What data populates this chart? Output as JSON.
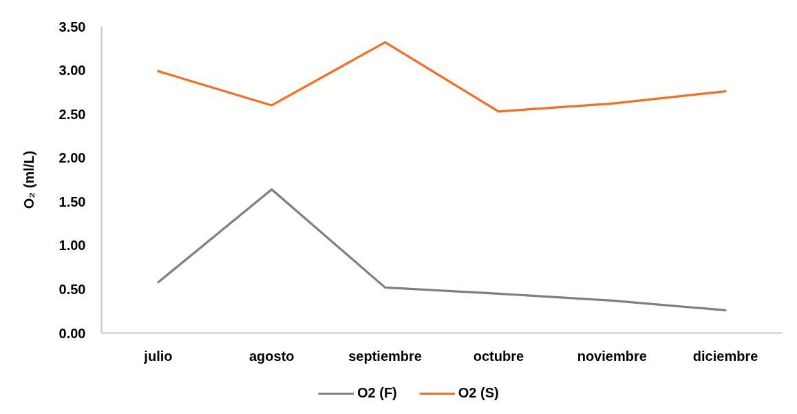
{
  "chart_data": {
    "type": "line",
    "ylabel": "O₂ (ml/L)",
    "categories": [
      "julio",
      "agosto",
      "septiembre",
      "octubre",
      "noviembre",
      "diciembre"
    ],
    "series": [
      {
        "name": "O2 (F)",
        "color": "#7f7f84",
        "values": [
          0.58,
          1.64,
          0.52,
          0.45,
          0.37,
          0.26
        ]
      },
      {
        "name": "O2 (S)",
        "color": "#fb6c1c",
        "values": [
          2.99,
          2.6,
          3.32,
          2.53,
          2.62,
          2.76
        ]
      }
    ],
    "ylim": [
      0,
      3.5
    ],
    "yticks": [
      {
        "value": 0,
        "label": "0.00"
      },
      {
        "value": 0.5,
        "label": "0.50"
      },
      {
        "value": 1,
        "label": "1.00"
      },
      {
        "value": 1.5,
        "label": "1.50"
      },
      {
        "value": 2,
        "label": "2.00"
      },
      {
        "value": 2.5,
        "label": "2.50"
      },
      {
        "value": 3,
        "label": "3.00"
      },
      {
        "value": 3.5,
        "label": "3.50"
      }
    ],
    "grid": false,
    "legend": "bottom",
    "marker": "none",
    "line_style": "solid"
  }
}
